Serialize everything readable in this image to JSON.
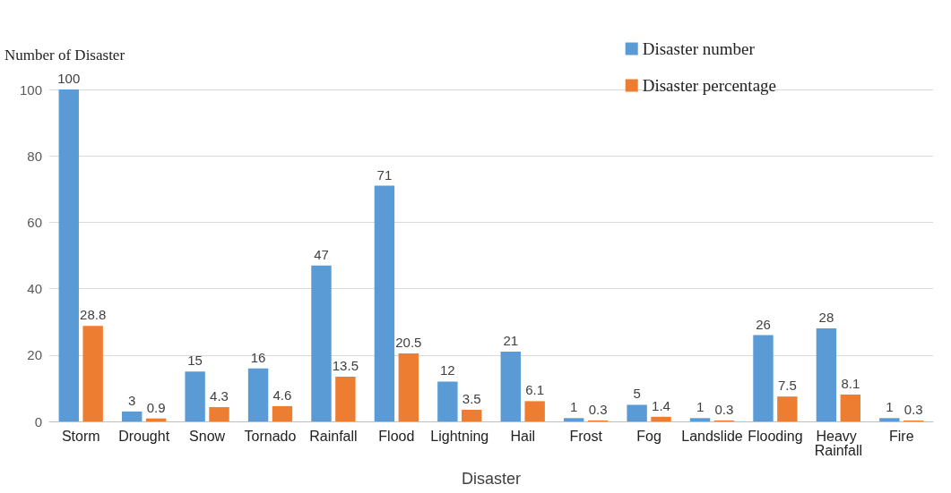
{
  "chart_data": {
    "type": "bar",
    "xlabel": "Disaster",
    "ylabel": "Number of Disaster",
    "categories": [
      "Storm",
      "Drought",
      "Snow",
      "Tornado",
      "Rainfall",
      "Flood",
      "Lightning",
      "Hail",
      "Frost",
      "Fog",
      "Landslide",
      "Flooding",
      "Heavy Rainfall",
      "Fire"
    ],
    "series": [
      {
        "name": "Disaster number",
        "color": "#5b9bd5",
        "values": [
          100,
          3,
          15,
          16,
          47,
          71,
          12,
          21,
          1,
          5,
          1,
          26,
          28,
          1
        ]
      },
      {
        "name": "Disaster percentage",
        "color": "#ed7d31",
        "values": [
          28.8,
          0.9,
          4.3,
          4.6,
          13.5,
          20.5,
          3.5,
          6.1,
          0.3,
          1.4,
          0.3,
          7.5,
          8.1,
          0.3
        ]
      }
    ],
    "ylim": [
      0,
      100
    ],
    "yticks": [
      0,
      20,
      40,
      60,
      80,
      100
    ],
    "grid": "y",
    "legend": "top right",
    "data_labels": true
  }
}
